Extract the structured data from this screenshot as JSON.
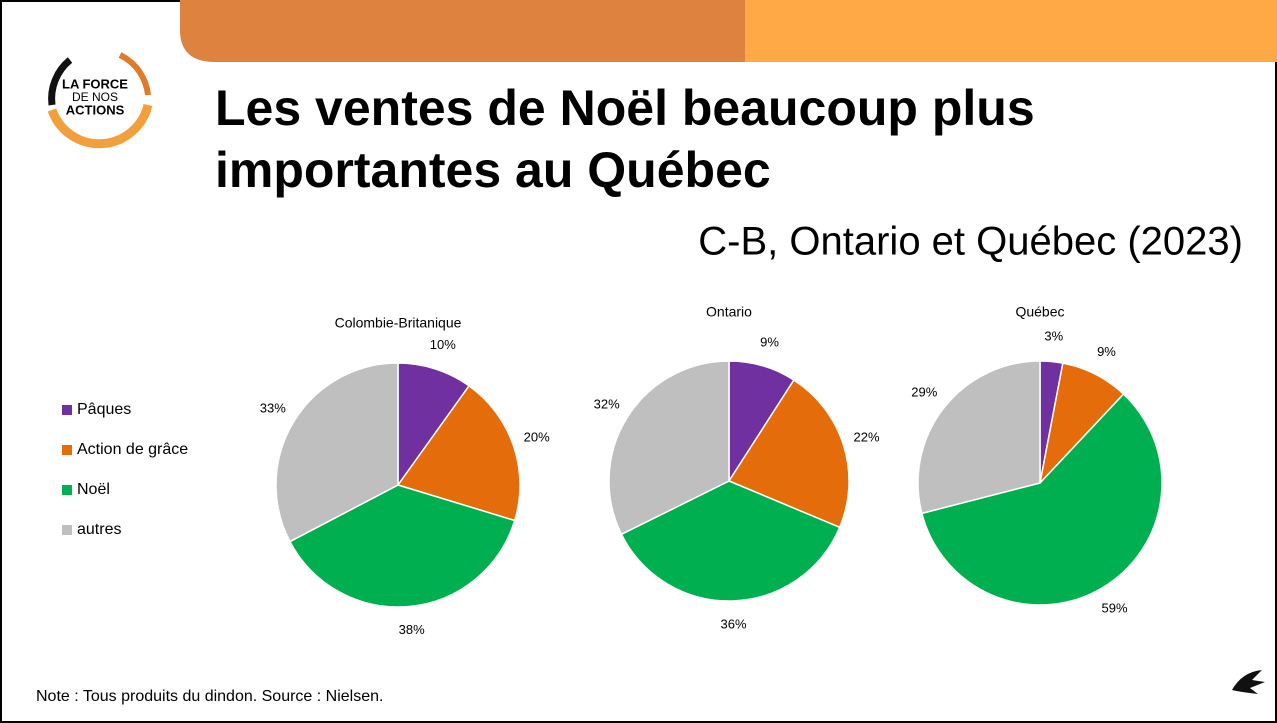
{
  "logo": [
    "LA FORCE",
    "DE NOS",
    "ACTIONS"
  ],
  "title": [
    "Les ventes de Noël beaucoup plus",
    "importantes au Québec"
  ],
  "subtitle": "C-B, Ontario et Québec (2023)",
  "note": "Note : Tous produits du dindon. Source : Nielsen.",
  "chart_data": {
    "type": "pie",
    "categories": [
      "Pâques",
      "Action de grâce",
      "Noël",
      "autres"
    ],
    "colors": [
      "#7030a0",
      "#e46c0a",
      "#00b050",
      "#bfbfbf"
    ],
    "series": [
      {
        "name": "Colombie-Britanique",
        "values": [
          10,
          20,
          38,
          33
        ],
        "value_labels": [
          "10%",
          "20%",
          "38%",
          "33%"
        ]
      },
      {
        "name": "Ontario",
        "values": [
          9,
          22,
          36,
          32
        ],
        "value_labels": [
          "9%",
          "22%",
          "36%",
          "32%"
        ]
      },
      {
        "name": "Québec",
        "values": [
          3,
          9,
          59,
          29
        ],
        "value_labels": [
          "3%",
          "9%",
          "59%",
          "29%"
        ]
      }
    ]
  }
}
